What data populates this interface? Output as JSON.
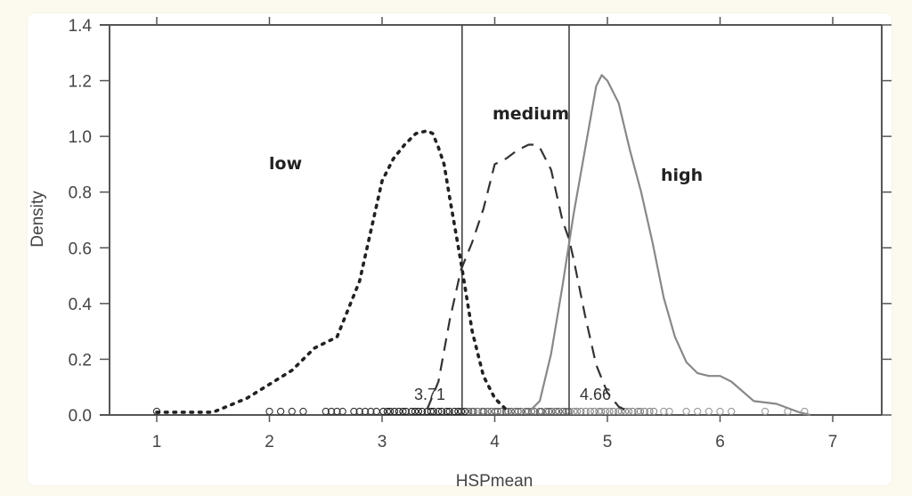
{
  "chart_data": {
    "type": "line",
    "title": "",
    "xlabel": "HSPmean",
    "ylabel": "Density",
    "xlim": [
      0.6,
      7.4
    ],
    "ylim": [
      0,
      1.4
    ],
    "grid": false,
    "legend": "none (inline text labels)",
    "x_ticks": [
      "1",
      "2",
      "3",
      "4",
      "5",
      "6",
      "7"
    ],
    "y_ticks": [
      "0.0",
      "0.2",
      "0.4",
      "0.6",
      "0.8",
      "1.0",
      "1.2",
      "1.4"
    ],
    "series": [
      {
        "name": "low",
        "style": "dotted",
        "color": "#222222",
        "x": [
          1.0,
          1.2,
          1.5,
          1.8,
          2.0,
          2.2,
          2.4,
          2.6,
          2.8,
          3.0,
          3.1,
          3.2,
          3.3,
          3.4,
          3.45,
          3.5,
          3.55,
          3.6,
          3.7,
          3.8,
          3.9,
          4.0,
          4.1
        ],
        "values": [
          0.01,
          0.01,
          0.01,
          0.06,
          0.11,
          0.16,
          0.24,
          0.28,
          0.48,
          0.84,
          0.92,
          0.97,
          1.01,
          1.02,
          1.01,
          0.96,
          0.9,
          0.78,
          0.55,
          0.3,
          0.14,
          0.06,
          0.02
        ]
      },
      {
        "name": "medium",
        "style": "dashed",
        "color": "#333333",
        "x": [
          3.4,
          3.5,
          3.6,
          3.7,
          3.8,
          3.9,
          4.0,
          4.1,
          4.2,
          4.3,
          4.35,
          4.4,
          4.5,
          4.6,
          4.66,
          4.7,
          4.8,
          4.9,
          5.0,
          5.1,
          5.2
        ],
        "values": [
          0.02,
          0.12,
          0.34,
          0.52,
          0.62,
          0.74,
          0.9,
          0.92,
          0.95,
          0.97,
          0.97,
          0.96,
          0.88,
          0.7,
          0.63,
          0.56,
          0.36,
          0.18,
          0.08,
          0.03,
          0.01
        ]
      },
      {
        "name": "high",
        "style": "solid",
        "color": "#888888",
        "x": [
          4.3,
          4.4,
          4.5,
          4.6,
          4.7,
          4.8,
          4.9,
          4.95,
          5.0,
          5.1,
          5.2,
          5.3,
          5.4,
          5.5,
          5.6,
          5.7,
          5.8,
          5.9,
          6.0,
          6.1,
          6.3,
          6.5,
          6.7,
          6.8
        ],
        "values": [
          0.01,
          0.05,
          0.22,
          0.46,
          0.72,
          0.95,
          1.18,
          1.22,
          1.2,
          1.12,
          0.95,
          0.8,
          0.62,
          0.42,
          0.28,
          0.19,
          0.15,
          0.14,
          0.14,
          0.12,
          0.05,
          0.04,
          0.01,
          0.0
        ]
      }
    ],
    "reference_lines": [
      {
        "axis": "x",
        "value": 3.71,
        "label": "3.71"
      },
      {
        "axis": "x",
        "value": 4.66,
        "label": "4.66"
      }
    ],
    "annotations": [
      {
        "text": "low",
        "x": 2.15,
        "y": 0.9
      },
      {
        "text": "medium",
        "x": 4.35,
        "y": 1.07
      },
      {
        "text": "high",
        "x": 5.7,
        "y": 0.86
      }
    ],
    "rug": "open-circle rug marks of observations along y=0 from ~1.0 to ~6.8"
  },
  "labels": {
    "xlabel": "HSPmean",
    "ylabel": "Density",
    "x_ticks": [
      "1",
      "2",
      "3",
      "4",
      "5",
      "6",
      "7"
    ],
    "y_ticks": [
      "0.0",
      "0.2",
      "0.4",
      "0.6",
      "0.8",
      "1.0",
      "1.2",
      "1.4"
    ],
    "regions": [
      "low",
      "medium",
      "high"
    ],
    "cuts": [
      "3.71",
      "4.66"
    ]
  }
}
